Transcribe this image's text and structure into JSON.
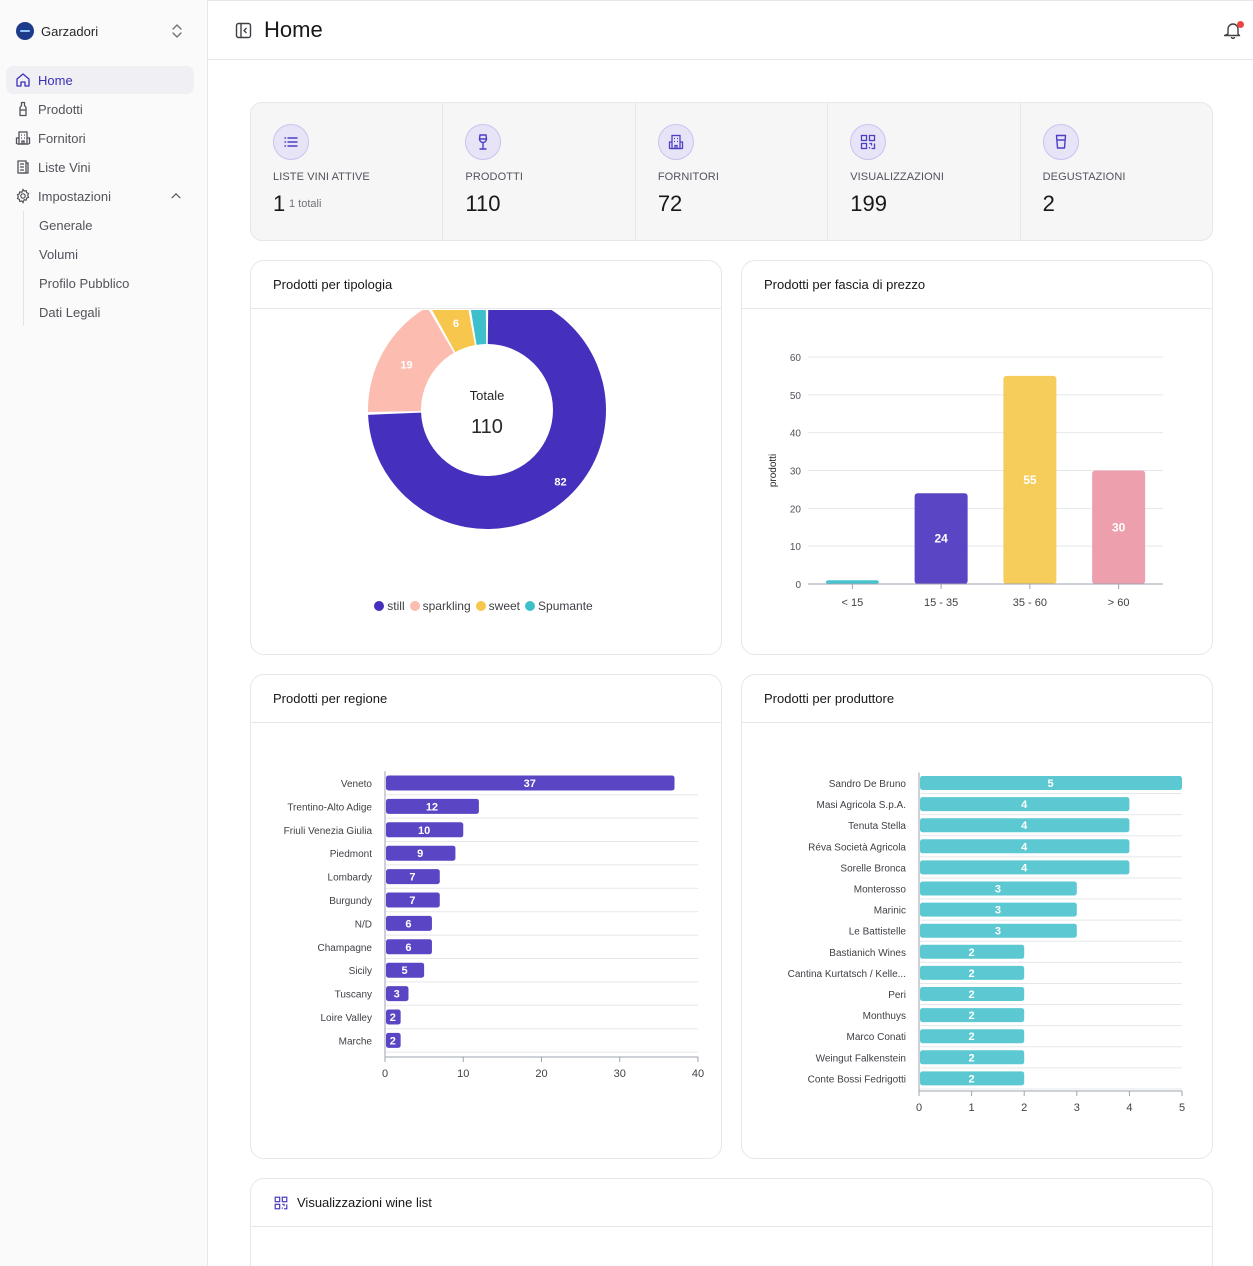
{
  "org": {
    "name": "Garzadori",
    "logo": "org-logo"
  },
  "nav": {
    "items": [
      {
        "key": "home",
        "label": "Home",
        "icon": "home-icon",
        "active": true
      },
      {
        "key": "prodotti",
        "label": "Prodotti",
        "icon": "bottle-icon"
      },
      {
        "key": "fornitori",
        "label": "Fornitori",
        "icon": "building-icon"
      },
      {
        "key": "liste-vini",
        "label": "Liste Vini",
        "icon": "list-icon"
      },
      {
        "key": "impostazioni",
        "label": "Impostazioni",
        "icon": "gear-icon",
        "expanded": true
      }
    ],
    "settings_items": [
      {
        "key": "generale",
        "label": "Generale"
      },
      {
        "key": "volumi",
        "label": "Volumi"
      },
      {
        "key": "profilo-pubblico",
        "label": "Profilo Pubblico"
      },
      {
        "key": "dati-legali",
        "label": "Dati Legali"
      }
    ]
  },
  "header": {
    "title": "Home"
  },
  "stats": [
    {
      "key": "liste",
      "label": "LISTE VINI ATTIVE",
      "value": "1",
      "sub": "1 totali",
      "icon": "list-icon"
    },
    {
      "key": "prodotti",
      "label": "PRODOTTI",
      "value": "110",
      "icon": "wine-glass-icon"
    },
    {
      "key": "fornitori",
      "label": "FORNITORI",
      "value": "72",
      "icon": "building-icon"
    },
    {
      "key": "visualizzazioni",
      "label": "VISUALIZZAZIONI",
      "value": "199",
      "icon": "qr-code-icon"
    },
    {
      "key": "degustazioni",
      "label": "DEGUSTAZIONI",
      "value": "2",
      "icon": "cup-icon"
    }
  ],
  "cards": {
    "tipologia": "Prodotti per tipologia",
    "fascia": "Prodotti per fascia di prezzo",
    "regione": "Prodotti per regione",
    "produttore": "Prodotti per produttore",
    "visualizzazioni": "Visualizzazioni wine list"
  },
  "chart_data": [
    {
      "type": "pie",
      "title": "Prodotti per tipologia",
      "donut": true,
      "center_label": "Totale",
      "center_value": "110",
      "series": [
        {
          "name": "still",
          "value": 82,
          "color": "#4530bd"
        },
        {
          "name": "sparkling",
          "value": 19,
          "color": "#fcbcb0"
        },
        {
          "name": "sweet",
          "value": 6,
          "color": "#f6c74c"
        },
        {
          "name": "Spumante",
          "value": 3,
          "color": "#3ec0cc"
        }
      ],
      "legend": "bottom"
    },
    {
      "type": "bar",
      "title": "Prodotti per fascia di prezzo",
      "ylabel": "prodotti",
      "categories": [
        "< 15",
        "15 - 35",
        "35 - 60",
        "> 60"
      ],
      "values": [
        1,
        24,
        55,
        30
      ],
      "colors": [
        "#46c4cd",
        "#5a45c4",
        "#f6cd5a",
        "#ee9fae"
      ],
      "ylim": [
        0,
        60
      ],
      "yticks": [
        0,
        10,
        20,
        30,
        40,
        50,
        60
      ],
      "grid": true
    },
    {
      "type": "bar",
      "orientation": "horizontal",
      "title": "Prodotti per regione",
      "categories": [
        "Veneto",
        "Trentino-Alto Adige",
        "Friuli Venezia Giulia",
        "Piedmont",
        "Lombardy",
        "Burgundy",
        "N/D",
        "Champagne",
        "Sicily",
        "Tuscany",
        "Loire Valley",
        "Marche"
      ],
      "values": [
        37,
        12,
        10,
        9,
        7,
        7,
        6,
        6,
        5,
        3,
        2,
        2
      ],
      "color": "#5a45c4",
      "xlim": [
        0,
        40
      ],
      "xticks": [
        0,
        10,
        20,
        30,
        40
      ],
      "grid": true
    },
    {
      "type": "bar",
      "orientation": "horizontal",
      "title": "Prodotti per produttore",
      "categories": [
        "Sandro De Bruno",
        "Masi Agricola S.p.A.",
        "Tenuta Stella",
        "Réva Società Agricola",
        "Sorelle Bronca",
        "Monterosso",
        "Marinic",
        "Le Battistelle",
        "Bastianich Wines",
        "Cantina Kurtatsch / Kelle...",
        "Peri",
        "Monthuys",
        "Marco Conati",
        "Weingut Falkenstein",
        "Conte Bossi Fedrigotti"
      ],
      "values": [
        5,
        4,
        4,
        4,
        4,
        3,
        3,
        3,
        2,
        2,
        2,
        2,
        2,
        2,
        2
      ],
      "color": "#5cc9d2",
      "xlim": [
        0,
        5
      ],
      "xticks": [
        0,
        1,
        2,
        3,
        4,
        5
      ],
      "grid": true
    }
  ]
}
